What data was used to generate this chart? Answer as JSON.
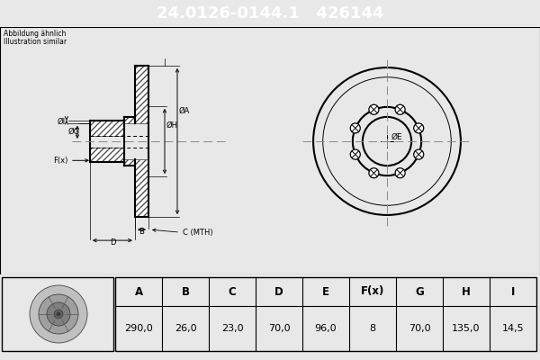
{
  "title_part": "24.0126-0144.1",
  "title_oem": "426144",
  "title_bg": "#0000cc",
  "title_text_color": "#ffffff",
  "subtitle_line1": "Abbildung ähnlich",
  "subtitle_line2": "Illustration similar",
  "table_headers": [
    "A",
    "B",
    "C",
    "D",
    "E",
    "F(x)",
    "G",
    "H",
    "I"
  ],
  "table_values": [
    "290,0",
    "26,0",
    "23,0",
    "70,0",
    "96,0",
    "8",
    "70,0",
    "135,0",
    "14,5"
  ],
  "bg_color": "#e8e8e8",
  "drawing_bg": "#ffffff",
  "line_color": "#000000"
}
